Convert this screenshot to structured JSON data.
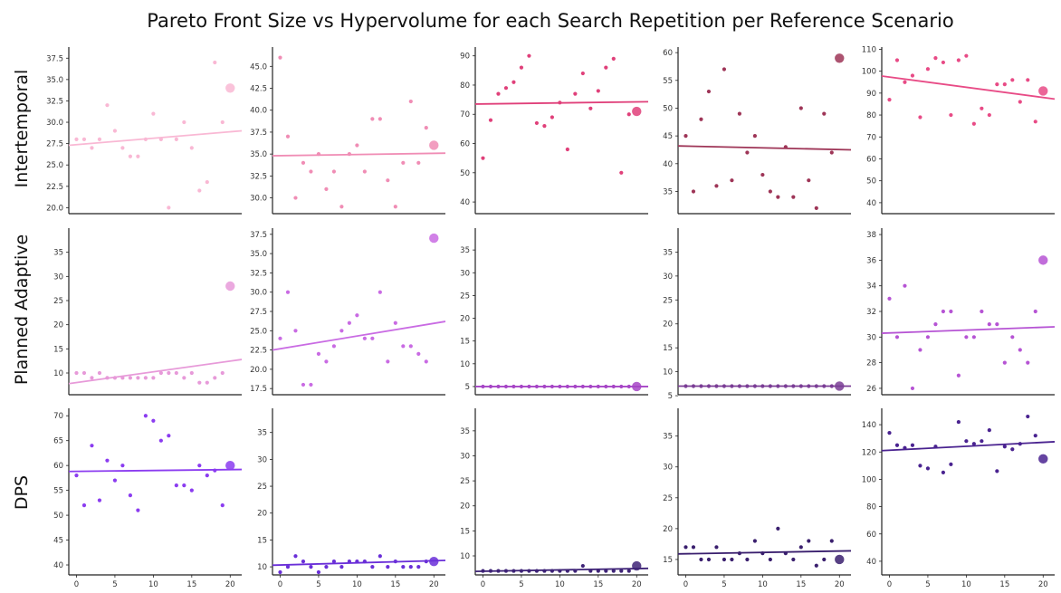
{
  "title": "Pareto Front Size vs Hypervolume for each Search Repetition per Reference Scenario",
  "row_labels": [
    "Intertemporal",
    "Planned Adaptive",
    "DPS"
  ],
  "chart_data": [
    {
      "row": 0,
      "col": 0,
      "type": "scatter",
      "color": "#F9B8D4",
      "xlim": [
        -1,
        21.5
      ],
      "ylim": [
        19.3,
        38.8
      ],
      "yticks": [
        20.0,
        22.5,
        25.0,
        27.5,
        30.0,
        32.5,
        35.0,
        37.5
      ],
      "xticks": [],
      "tick_decimals": 1,
      "x": [
        0,
        1,
        2,
        3,
        4,
        5,
        6,
        7,
        8,
        9,
        10,
        11,
        12,
        13,
        14,
        15,
        16,
        17,
        18,
        19
      ],
      "y": [
        28,
        28,
        27,
        28,
        32,
        29,
        27,
        26,
        26,
        28,
        31,
        28,
        20,
        28,
        30,
        27,
        22,
        23,
        37,
        30
      ],
      "highlight": {
        "x": 20,
        "y": 34
      },
      "trend": [
        27.3,
        29.0
      ]
    },
    {
      "row": 0,
      "col": 1,
      "type": "scatter",
      "color": "#F08DB5",
      "xlim": [
        -1,
        21.5
      ],
      "ylim": [
        28.2,
        47.2
      ],
      "yticks": [
        30.0,
        32.5,
        35.0,
        37.5,
        40.0,
        42.5,
        45.0
      ],
      "xticks": [],
      "tick_decimals": 1,
      "x": [
        0,
        1,
        2,
        3,
        4,
        5,
        6,
        7,
        8,
        9,
        10,
        11,
        12,
        13,
        14,
        15,
        16,
        17,
        18,
        19
      ],
      "y": [
        46,
        37,
        30,
        34,
        33,
        35,
        31,
        33,
        29,
        35,
        36,
        33,
        39,
        39,
        32,
        29,
        34,
        41,
        34,
        38
      ],
      "highlight": {
        "x": 20,
        "y": 36
      },
      "trend": [
        34.8,
        35.1
      ]
    },
    {
      "row": 0,
      "col": 2,
      "type": "scatter",
      "color": "#E0407A",
      "xlim": [
        -1,
        21.5
      ],
      "ylim": [
        36,
        93
      ],
      "yticks": [
        40,
        50,
        60,
        70,
        80,
        90
      ],
      "xticks": [],
      "tick_decimals": 0,
      "x": [
        0,
        1,
        2,
        3,
        4,
        5,
        6,
        7,
        8,
        9,
        10,
        11,
        12,
        13,
        14,
        15,
        16,
        17,
        18,
        19
      ],
      "y": [
        55,
        68,
        77,
        79,
        81,
        86,
        90,
        67,
        66,
        69,
        74,
        58,
        77,
        84,
        72,
        78,
        86,
        89,
        50,
        70
      ],
      "highlight": {
        "x": 20,
        "y": 71
      },
      "trend": [
        73.5,
        74.3
      ]
    },
    {
      "row": 0,
      "col": 3,
      "type": "scatter",
      "color": "#9E3557",
      "xlim": [
        -1,
        21.5
      ],
      "ylim": [
        31,
        61
      ],
      "yticks": [
        35,
        40,
        45,
        50,
        55,
        60
      ],
      "xticks": [],
      "tick_decimals": 0,
      "x": [
        0,
        1,
        2,
        3,
        4,
        5,
        6,
        7,
        8,
        9,
        10,
        11,
        12,
        13,
        14,
        15,
        16,
        17,
        18,
        19
      ],
      "y": [
        45,
        35,
        48,
        53,
        36,
        57,
        37,
        49,
        42,
        45,
        38,
        35,
        34,
        43,
        34,
        50,
        37,
        32,
        49,
        42
      ],
      "highlight": {
        "x": 20,
        "y": 59
      },
      "trend": [
        43.2,
        42.5
      ]
    },
    {
      "row": 0,
      "col": 4,
      "type": "scatter",
      "color": "#E84B86",
      "xlim": [
        -1,
        21.5
      ],
      "ylim": [
        35,
        111
      ],
      "yticks": [
        40,
        50,
        60,
        70,
        80,
        90,
        100,
        110
      ],
      "xticks": [],
      "tick_decimals": 0,
      "x": [
        0,
        1,
        2,
        3,
        4,
        5,
        6,
        7,
        8,
        9,
        10,
        11,
        12,
        13,
        14,
        15,
        16,
        17,
        18,
        19
      ],
      "y": [
        87,
        105,
        95,
        98,
        79,
        101,
        106,
        104,
        80,
        105,
        107,
        76,
        83,
        80,
        94,
        94,
        96,
        86,
        96,
        77
      ],
      "highlight": {
        "x": 20,
        "y": 91
      },
      "trend": [
        97.8,
        87.3
      ]
    },
    {
      "row": 1,
      "col": 0,
      "type": "scatter",
      "color": "#E79AD9",
      "xlim": [
        -1,
        21.5
      ],
      "ylim": [
        5.5,
        40
      ],
      "yticks": [
        10,
        15,
        20,
        25,
        30,
        35
      ],
      "xticks": [],
      "tick_decimals": 0,
      "x": [
        0,
        1,
        2,
        3,
        4,
        5,
        6,
        7,
        8,
        9,
        10,
        11,
        12,
        13,
        14,
        15,
        16,
        17,
        18,
        19
      ],
      "y": [
        10,
        10,
        9,
        10,
        9,
        9,
        9,
        9,
        9,
        9,
        9,
        10,
        10,
        10,
        9,
        10,
        8,
        8,
        9,
        10
      ],
      "highlight": {
        "x": 20,
        "y": 28
      },
      "trend": [
        7.8,
        12.8
      ]
    },
    {
      "row": 1,
      "col": 1,
      "type": "scatter",
      "color": "#C96BE3",
      "xlim": [
        -1,
        21.5
      ],
      "ylim": [
        16.7,
        38.3
      ],
      "yticks": [
        17.5,
        20.0,
        22.5,
        25.0,
        27.5,
        30.0,
        32.5,
        35.0,
        37.5
      ],
      "xticks": [],
      "tick_decimals": 1,
      "x": [
        0,
        1,
        2,
        3,
        4,
        5,
        6,
        7,
        8,
        9,
        10,
        11,
        12,
        13,
        14,
        15,
        16,
        17,
        18,
        19
      ],
      "y": [
        24,
        30,
        25,
        18,
        18,
        22,
        21,
        23,
        25,
        26,
        27,
        24,
        24,
        30,
        21,
        26,
        23,
        23,
        22,
        21
      ],
      "highlight": {
        "x": 20,
        "y": 37
      },
      "trend": [
        22.5,
        26.2
      ]
    },
    {
      "row": 1,
      "col": 2,
      "type": "scatter",
      "color": "#A645C6",
      "xlim": [
        -1,
        21.5
      ],
      "ylim": [
        3.2,
        39.8
      ],
      "yticks": [
        5,
        10,
        15,
        20,
        25,
        30,
        35
      ],
      "xticks": [],
      "tick_decimals": 0,
      "x": [
        0,
        1,
        2,
        3,
        4,
        5,
        6,
        7,
        8,
        9,
        10,
        11,
        12,
        13,
        14,
        15,
        16,
        17,
        18,
        19
      ],
      "y": [
        5,
        5,
        5,
        5,
        5,
        5,
        5,
        5,
        5,
        5,
        5,
        5,
        5,
        5,
        5,
        5,
        5,
        5,
        5,
        5
      ],
      "highlight": {
        "x": 20,
        "y": 5
      },
      "trend": [
        5.0,
        5.0
      ]
    },
    {
      "row": 1,
      "col": 3,
      "type": "scatter",
      "color": "#7A3D95",
      "xlim": [
        -1,
        21.5
      ],
      "ylim": [
        5.2,
        40
      ],
      "yticks": [
        5,
        10,
        15,
        20,
        25,
        30,
        35
      ],
      "xticks": [],
      "tick_decimals": 0,
      "x": [
        0,
        1,
        2,
        3,
        4,
        5,
        6,
        7,
        8,
        9,
        10,
        11,
        12,
        13,
        14,
        15,
        16,
        17,
        18,
        19
      ],
      "y": [
        7,
        7,
        7,
        7,
        7,
        7,
        7,
        7,
        7,
        7,
        7,
        7,
        7,
        7,
        7,
        7,
        7,
        7,
        7,
        7
      ],
      "highlight": {
        "x": 20,
        "y": 7
      },
      "trend": [
        7.0,
        7.0
      ]
    },
    {
      "row": 1,
      "col": 4,
      "type": "scatter",
      "color": "#B654D4",
      "xlim": [
        -1,
        21.5
      ],
      "ylim": [
        25.5,
        38.5
      ],
      "yticks": [
        26,
        28,
        30,
        32,
        34,
        36,
        38
      ],
      "xticks": [],
      "tick_decimals": 0,
      "x": [
        0,
        1,
        2,
        3,
        4,
        5,
        6,
        7,
        8,
        9,
        10,
        11,
        12,
        13,
        14,
        15,
        16,
        17,
        18,
        19
      ],
      "y": [
        33,
        30,
        34,
        26,
        29,
        30,
        31,
        32,
        32,
        27,
        30,
        30,
        32,
        31,
        31,
        28,
        30,
        29,
        28,
        32
      ],
      "highlight": {
        "x": 20,
        "y": 36
      },
      "trend": [
        30.3,
        30.8
      ]
    },
    {
      "row": 2,
      "col": 0,
      "type": "scatter",
      "color": "#8B3CF0",
      "xlim": [
        -1,
        21.5
      ],
      "ylim": [
        38,
        71.5
      ],
      "yticks": [
        40,
        45,
        50,
        55,
        60,
        65,
        70
      ],
      "xticks": [
        0,
        5,
        10,
        15,
        20
      ],
      "tick_decimals": 0,
      "x": [
        0,
        1,
        2,
        3,
        4,
        5,
        6,
        7,
        8,
        9,
        10,
        11,
        12,
        13,
        14,
        15,
        16,
        17,
        18,
        19
      ],
      "y": [
        58,
        52,
        64,
        53,
        61,
        57,
        60,
        54,
        51,
        70,
        69,
        65,
        66,
        56,
        56,
        55,
        60,
        58,
        59,
        52
      ],
      "highlight": {
        "x": 20,
        "y": 60
      },
      "trend": [
        58.8,
        59.2
      ]
    },
    {
      "row": 2,
      "col": 1,
      "type": "scatter",
      "color": "#6A2FD8",
      "xlim": [
        -1,
        21.5
      ],
      "ylim": [
        8.5,
        39.5
      ],
      "yticks": [
        10,
        15,
        20,
        25,
        30,
        35
      ],
      "xticks": [
        0,
        5,
        10,
        15,
        20
      ],
      "tick_decimals": 0,
      "x": [
        0,
        1,
        2,
        3,
        4,
        5,
        6,
        7,
        8,
        9,
        10,
        11,
        12,
        13,
        14,
        15,
        16,
        17,
        18,
        19
      ],
      "y": [
        9,
        10,
        12,
        11,
        10,
        9,
        10,
        11,
        10,
        11,
        11,
        11,
        10,
        12,
        10,
        11,
        10,
        10,
        10,
        11
      ],
      "highlight": {
        "x": 20,
        "y": 11
      },
      "trend": [
        10.3,
        11.2
      ]
    },
    {
      "row": 2,
      "col": 2,
      "type": "scatter",
      "color": "#3E2377",
      "xlim": [
        -1,
        21.5
      ],
      "ylim": [
        6.2,
        39.5
      ],
      "yticks": [
        10,
        15,
        20,
        25,
        30,
        35
      ],
      "xticks": [
        0,
        5,
        10,
        15,
        20
      ],
      "tick_decimals": 0,
      "x": [
        0,
        1,
        2,
        3,
        4,
        5,
        6,
        7,
        8,
        9,
        10,
        11,
        12,
        13,
        14,
        15,
        16,
        17,
        18,
        19
      ],
      "y": [
        7,
        7,
        7,
        7,
        7,
        7,
        7,
        7,
        7,
        7,
        7,
        7,
        7,
        8,
        7,
        7,
        7,
        7,
        7,
        7
      ],
      "highlight": {
        "x": 20,
        "y": 8
      },
      "trend": [
        6.9,
        7.5
      ]
    },
    {
      "row": 2,
      "col": 3,
      "type": "scatter",
      "color": "#3A1F6E",
      "xlim": [
        -1,
        21.5
      ],
      "ylim": [
        12.5,
        39.5
      ],
      "yticks": [
        15,
        20,
        25,
        30,
        35
      ],
      "xticks": [
        0,
        5,
        10,
        15,
        20
      ],
      "tick_decimals": 0,
      "x": [
        0,
        1,
        2,
        3,
        4,
        5,
        6,
        7,
        8,
        9,
        10,
        11,
        12,
        13,
        14,
        15,
        16,
        17,
        18,
        19
      ],
      "y": [
        17,
        17,
        15,
        15,
        17,
        15,
        15,
        16,
        15,
        18,
        16,
        15,
        20,
        16,
        15,
        17,
        18,
        14,
        15,
        18
      ],
      "highlight": {
        "x": 20,
        "y": 15
      },
      "trend": [
        15.9,
        16.4
      ]
    },
    {
      "row": 2,
      "col": 4,
      "type": "scatter",
      "color": "#4A2390",
      "xlim": [
        -1,
        21.5
      ],
      "ylim": [
        30,
        152
      ],
      "yticks": [
        40,
        60,
        80,
        100,
        120,
        140
      ],
      "xticks": [
        0,
        5,
        10,
        15,
        20
      ],
      "tick_decimals": 0,
      "x": [
        0,
        1,
        2,
        3,
        4,
        5,
        6,
        7,
        8,
        9,
        10,
        11,
        12,
        13,
        14,
        15,
        16,
        17,
        18,
        19
      ],
      "y": [
        134,
        125,
        123,
        125,
        110,
        108,
        124,
        105,
        111,
        142,
        128,
        126,
        128,
        136,
        106,
        124,
        122,
        126,
        146,
        132
      ],
      "highlight": {
        "x": 20,
        "y": 115
      },
      "trend": [
        121.0,
        127.5
      ]
    }
  ]
}
